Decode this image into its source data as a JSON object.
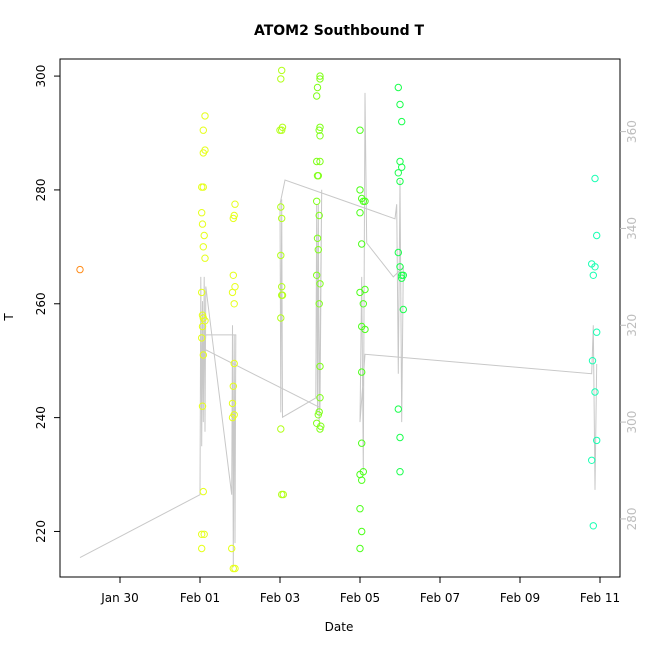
{
  "chart_data": {
    "type": "scatter",
    "title": "ATOM2 Southbound T",
    "xlabel": "Date",
    "ylabel": "T",
    "x_axis": {
      "unit": "date",
      "lim": [
        "2014-01-28T12:00",
        "2014-02-11T12:00"
      ],
      "ticks": [
        {
          "value": "2014-01-30",
          "label": "Jan 30"
        },
        {
          "value": "2014-02-01",
          "label": "Feb 01"
        },
        {
          "value": "2014-02-03",
          "label": "Feb 03"
        },
        {
          "value": "2014-02-05",
          "label": "Feb 05"
        },
        {
          "value": "2014-02-07",
          "label": "Feb 07"
        },
        {
          "value": "2014-02-09",
          "label": "Feb 09"
        },
        {
          "value": "2014-02-11",
          "label": "Feb 11"
        }
      ]
    },
    "y_left": {
      "lim": [
        212,
        303
      ],
      "ticks": [
        220,
        240,
        260,
        280,
        300
      ]
    },
    "y_right": {
      "lim": [
        268,
        375
      ],
      "ticks": [
        280,
        300,
        320,
        340,
        360
      ],
      "color": "#bdbdbd"
    },
    "grid": false,
    "legend": "none",
    "line_color": "#c8c8c8",
    "scatter_series": [
      {
        "color": "#ff8c1a",
        "points": [
          [
            "2014-01-29T00:00",
            266
          ]
        ]
      },
      {
        "color": "#e6ff1a",
        "points": [
          [
            "2014-02-01T01:00",
            217
          ],
          [
            "2014-02-01T01:00",
            219.5
          ],
          [
            "2014-02-01T02:30",
            219.5
          ],
          [
            "2014-02-01T02:00",
            227
          ],
          [
            "2014-02-01T01:30",
            242
          ],
          [
            "2014-02-01T02:00",
            251
          ],
          [
            "2014-02-01T01:00",
            254
          ],
          [
            "2014-02-01T01:30",
            256
          ],
          [
            "2014-02-01T02:00",
            257.5
          ],
          [
            "2014-02-01T01:30",
            258
          ],
          [
            "2014-02-01T03:00",
            257
          ],
          [
            "2014-02-01T01:00",
            262
          ],
          [
            "2014-02-01T03:00",
            268
          ],
          [
            "2014-02-01T02:00",
            270
          ],
          [
            "2014-02-01T02:30",
            272
          ],
          [
            "2014-02-01T01:30",
            274
          ],
          [
            "2014-02-01T01:00",
            276
          ],
          [
            "2014-02-01T01:00",
            280.5
          ],
          [
            "2014-02-01T02:00",
            280.5
          ],
          [
            "2014-02-01T02:00",
            286.5
          ],
          [
            "2014-02-01T03:00",
            287
          ],
          [
            "2014-02-01T02:00",
            290.5
          ],
          [
            "2014-02-01T03:00",
            293
          ],
          [
            "2014-02-01T20:00",
            213.5
          ],
          [
            "2014-02-01T21:00",
            213.5
          ],
          [
            "2014-02-01T19:00",
            217
          ],
          [
            "2014-02-01T19:30",
            240
          ],
          [
            "2014-02-01T20:30",
            240.5
          ],
          [
            "2014-02-01T19:30",
            242.5
          ],
          [
            "2014-02-01T20:00",
            245.5
          ],
          [
            "2014-02-01T20:30",
            249.5
          ],
          [
            "2014-02-01T20:30",
            260
          ],
          [
            "2014-02-01T19:30",
            262
          ],
          [
            "2014-02-01T21:00",
            263
          ],
          [
            "2014-02-01T20:00",
            265
          ],
          [
            "2014-02-01T20:00",
            275
          ],
          [
            "2014-02-01T20:30",
            275.5
          ],
          [
            "2014-02-01T21:00",
            277.5
          ]
        ]
      },
      {
        "color": "#b3ff1a",
        "points": [
          [
            "2014-02-03T01:00",
            226.5
          ],
          [
            "2014-02-03T02:00",
            226.5
          ],
          [
            "2014-02-03T00:30",
            238
          ],
          [
            "2014-02-03T00:30",
            257.5
          ],
          [
            "2014-02-03T01:00",
            261.5
          ],
          [
            "2014-02-03T01:30",
            261.5
          ],
          [
            "2014-02-03T01:00",
            263
          ],
          [
            "2014-02-03T00:30",
            268.5
          ],
          [
            "2014-02-03T01:00",
            275
          ],
          [
            "2014-02-03T00:30",
            277
          ],
          [
            "2014-02-03T00:00",
            290.5
          ],
          [
            "2014-02-03T01:00",
            290.5
          ],
          [
            "2014-02-03T01:30",
            291
          ],
          [
            "2014-02-03T00:30",
            299.5
          ],
          [
            "2014-02-03T01:00",
            301
          ]
        ]
      },
      {
        "color": "#80ff1a",
        "points": [
          [
            "2014-02-03T22:00",
            239
          ],
          [
            "2014-02-03T23:00",
            240.5
          ],
          [
            "2014-02-04T00:00",
            238
          ],
          [
            "2014-02-04T00:30",
            238.5
          ],
          [
            "2014-02-03T23:30",
            241
          ],
          [
            "2014-02-04T00:00",
            243.5
          ],
          [
            "2014-02-04T00:00",
            249
          ],
          [
            "2014-02-03T23:30",
            260
          ],
          [
            "2014-02-04T00:00",
            263.5
          ],
          [
            "2014-02-03T22:00",
            265
          ],
          [
            "2014-02-03T23:00",
            269.5
          ],
          [
            "2014-02-03T22:30",
            271.5
          ],
          [
            "2014-02-03T23:30",
            275.5
          ],
          [
            "2014-02-03T22:00",
            278
          ],
          [
            "2014-02-03T22:30",
            282.5
          ],
          [
            "2014-02-03T23:00",
            282.5
          ],
          [
            "2014-02-03T22:00",
            285
          ],
          [
            "2014-02-04T00:00",
            285
          ],
          [
            "2014-02-04T00:00",
            289.5
          ],
          [
            "2014-02-03T23:30",
            290.5
          ],
          [
            "2014-02-04T00:00",
            291
          ],
          [
            "2014-02-03T22:00",
            296.5
          ],
          [
            "2014-02-03T22:30",
            298
          ],
          [
            "2014-02-04T00:00",
            299.5
          ],
          [
            "2014-02-04T00:00",
            300
          ]
        ]
      },
      {
        "color": "#4dff1a",
        "points": [
          [
            "2014-02-05T00:00",
            217
          ],
          [
            "2014-02-05T01:00",
            220
          ],
          [
            "2014-02-05T00:00",
            224
          ],
          [
            "2014-02-05T00:00",
            230
          ],
          [
            "2014-02-05T02:00",
            230.5
          ],
          [
            "2014-02-05T01:00",
            229
          ],
          [
            "2014-02-05T01:00",
            235.5
          ],
          [
            "2014-02-05T01:00",
            248
          ],
          [
            "2014-02-05T03:00",
            255.5
          ],
          [
            "2014-02-05T01:00",
            256
          ],
          [
            "2014-02-05T02:00",
            260
          ],
          [
            "2014-02-05T00:00",
            262
          ],
          [
            "2014-02-05T03:00",
            262.5
          ],
          [
            "2014-02-05T01:00",
            270.5
          ],
          [
            "2014-02-05T00:00",
            276
          ],
          [
            "2014-02-05T02:00",
            278
          ],
          [
            "2014-02-05T03:00",
            278
          ],
          [
            "2014-02-05T01:00",
            278.5
          ],
          [
            "2014-02-05T00:00",
            280
          ],
          [
            "2014-02-05T00:00",
            290.5
          ]
        ]
      },
      {
        "color": "#1aff4d",
        "points": [
          [
            "2014-02-05T23:00",
            241.5
          ],
          [
            "2014-02-06T00:00",
            236.5
          ],
          [
            "2014-02-06T00:00",
            230.5
          ],
          [
            "2014-02-06T02:00",
            259
          ],
          [
            "2014-02-06T01:00",
            264.5
          ],
          [
            "2014-02-06T01:00",
            265
          ],
          [
            "2014-02-06T02:00",
            265
          ],
          [
            "2014-02-06T00:00",
            266.5
          ],
          [
            "2014-02-05T23:00",
            269
          ],
          [
            "2014-02-06T00:00",
            281.5
          ],
          [
            "2014-02-05T23:00",
            283
          ],
          [
            "2014-02-06T01:00",
            284
          ],
          [
            "2014-02-06T00:00",
            285
          ],
          [
            "2014-02-06T01:00",
            292
          ],
          [
            "2014-02-06T00:00",
            295
          ],
          [
            "2014-02-05T23:00",
            298
          ]
        ]
      },
      {
        "color": "#1affb3",
        "points": [
          [
            "2014-02-10T20:00",
            221
          ],
          [
            "2014-02-10T19:00",
            232.5
          ],
          [
            "2014-02-10T22:00",
            236
          ],
          [
            "2014-02-10T21:00",
            244.5
          ],
          [
            "2014-02-10T19:30",
            250
          ],
          [
            "2014-02-10T22:00",
            255
          ],
          [
            "2014-02-10T20:00",
            265
          ],
          [
            "2014-02-10T21:00",
            266.5
          ],
          [
            "2014-02-10T19:00",
            267
          ],
          [
            "2014-02-10T22:00",
            272
          ],
          [
            "2014-02-10T21:00",
            282
          ]
        ]
      }
    ],
    "line_series": [
      {
        "axis": "right",
        "points": [
          [
            "2014-01-29T00:00",
            272
          ],
          [
            "2014-02-01T00:00",
            285
          ],
          [
            "2014-02-01T00:30",
            330
          ],
          [
            "2014-02-01T01:00",
            295
          ],
          [
            "2014-02-01T01:30",
            325
          ],
          [
            "2014-02-01T02:00",
            300
          ],
          [
            "2014-02-01T02:30",
            330
          ],
          [
            "2014-02-01T03:00",
            298
          ],
          [
            "2014-02-01T03:30",
            328
          ],
          [
            "2014-02-01T19:00",
            285
          ],
          [
            "2014-02-01T19:30",
            320
          ],
          [
            "2014-02-01T20:00",
            270
          ],
          [
            "2014-02-01T20:30",
            318
          ],
          [
            "2014-02-01T21:00",
            275
          ],
          [
            "2014-02-01T21:30",
            318
          ],
          [
            "2014-02-01T03:30",
            318
          ],
          [
            "2014-02-01T03:00",
            315
          ],
          [
            "2014-02-04T00:00",
            303
          ],
          [
            "2014-02-04T01:00",
            348
          ],
          [
            "2014-02-03T23:30",
            300
          ],
          [
            "2014-02-03T23:00",
            345
          ],
          [
            "2014-02-03T22:30",
            302
          ],
          [
            "2014-02-03T22:00",
            345
          ],
          [
            "2014-02-03T21:30",
            305
          ],
          [
            "2014-02-03T01:30",
            301
          ],
          [
            "2014-02-03T01:00",
            346
          ],
          [
            "2014-02-03T00:30",
            302
          ],
          [
            "2014-02-03T00:00",
            345
          ],
          [
            "2014-02-03T03:00",
            350
          ],
          [
            "2014-02-05T21:00",
            342
          ],
          [
            "2014-02-05T22:00",
            345
          ],
          [
            "2014-02-05T23:00",
            310
          ],
          [
            "2014-02-06T00:00",
            350
          ],
          [
            "2014-02-06T01:00",
            300
          ],
          [
            "2014-02-06T02:00",
            332
          ],
          [
            "2014-02-05T20:00",
            330
          ],
          [
            "2014-02-05T04:00",
            337
          ],
          [
            "2014-02-05T03:00",
            368
          ],
          [
            "2014-02-05T02:00",
            290
          ],
          [
            "2014-02-05T01:00",
            330
          ],
          [
            "2014-02-05T00:00",
            300
          ],
          [
            "2014-02-05T03:00",
            314
          ],
          [
            "2014-02-10T19:00",
            310
          ],
          [
            "2014-02-10T20:00",
            320
          ],
          [
            "2014-02-10T21:00",
            286
          ],
          [
            "2014-02-10T22:00",
            312
          ]
        ]
      }
    ]
  }
}
